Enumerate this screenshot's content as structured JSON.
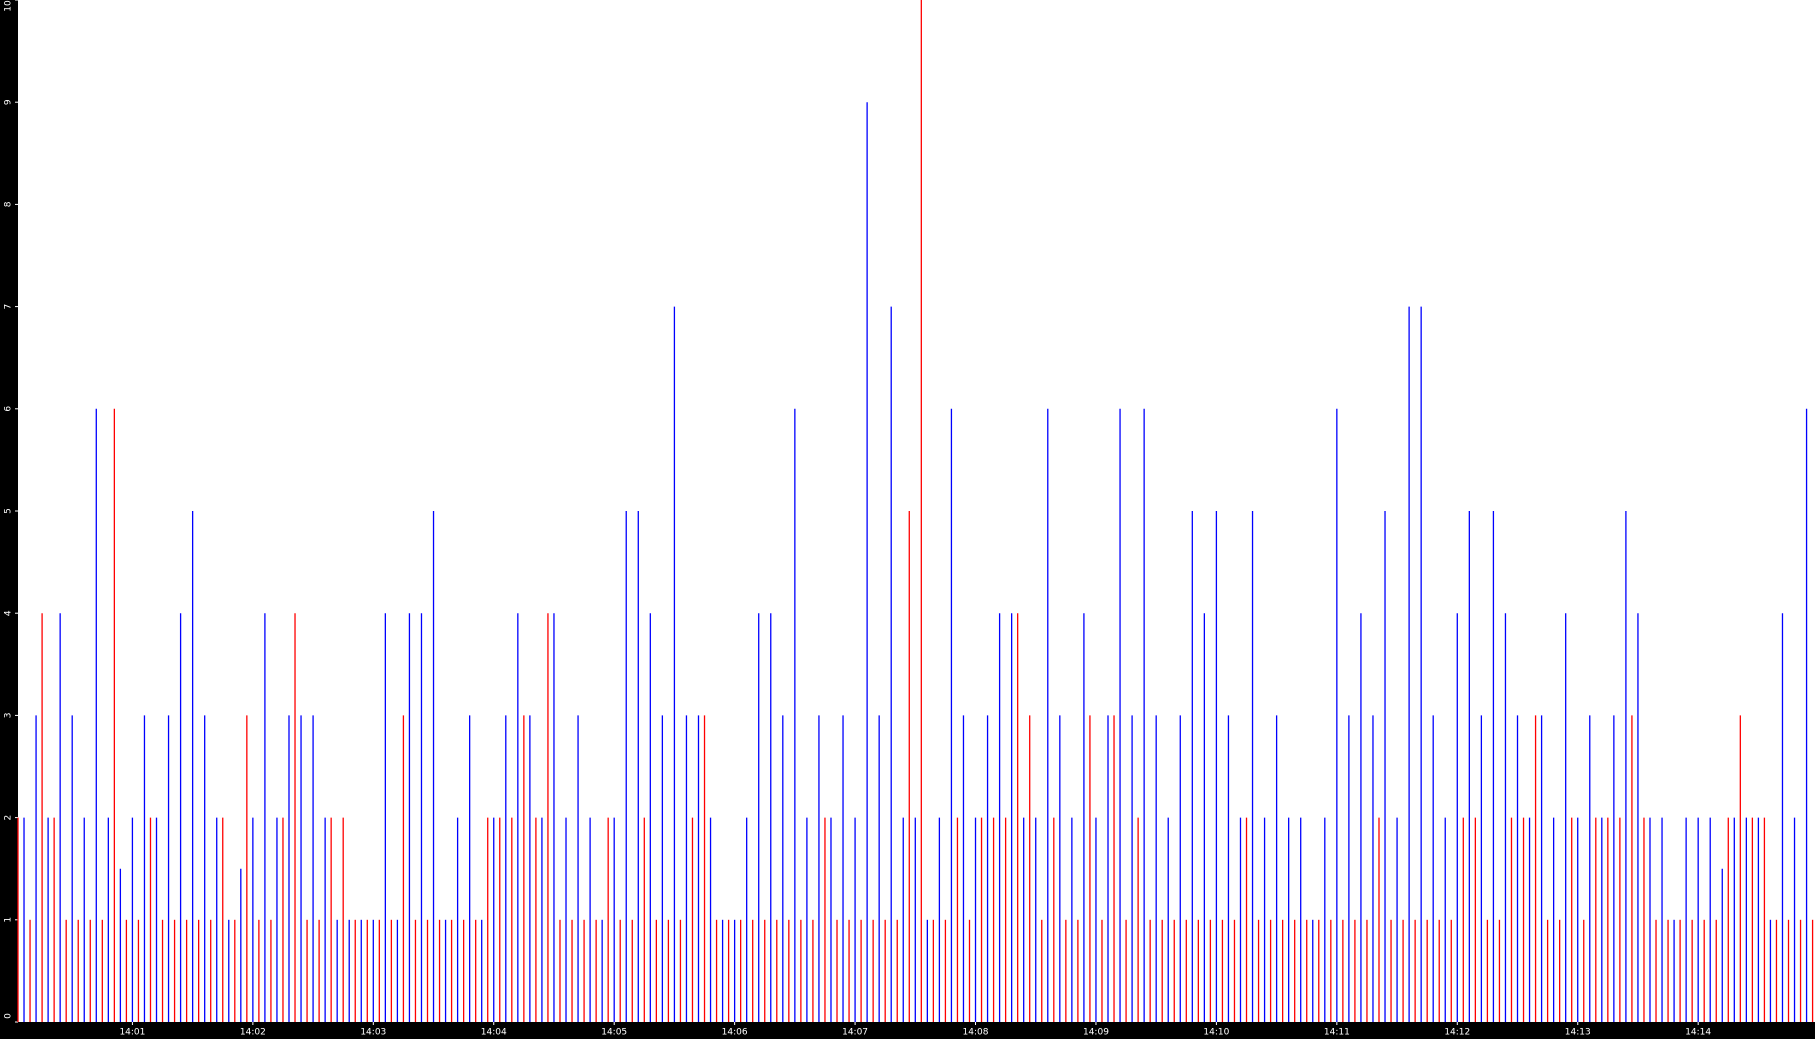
{
  "chart_data": {
    "type": "spike",
    "xlim": [
      0.05,
      14.97
    ],
    "xticks": [
      {
        "value": 1,
        "label": "14:01"
      },
      {
        "value": 2,
        "label": "14:02"
      },
      {
        "value": 3,
        "label": "14:03"
      },
      {
        "value": 4,
        "label": "14:04"
      },
      {
        "value": 5,
        "label": "14:05"
      },
      {
        "value": 6,
        "label": "14:06"
      },
      {
        "value": 7,
        "label": "14:07"
      },
      {
        "value": 8,
        "label": "14:08"
      },
      {
        "value": 9,
        "label": "14:09"
      },
      {
        "value": 10,
        "label": "14:10"
      },
      {
        "value": 11,
        "label": "14:11"
      },
      {
        "value": 12,
        "label": "14:12"
      },
      {
        "value": 13,
        "label": "14:13"
      },
      {
        "value": 14,
        "label": "14:14"
      }
    ],
    "ylim": [
      0,
      10
    ],
    "yticks": [
      0,
      1,
      2,
      3,
      4,
      5,
      6,
      7,
      8,
      9,
      10
    ],
    "series": [
      {
        "color": "#ff0000",
        "x": [
          0.05,
          0.15,
          0.25,
          0.35,
          0.45,
          0.55,
          0.65,
          0.75,
          0.85,
          0.95,
          1.05,
          1.15,
          1.25,
          1.35,
          1.45,
          1.55,
          1.65,
          1.75,
          1.85,
          1.95,
          2.05,
          2.15,
          2.25,
          2.35,
          2.45,
          2.55,
          2.65,
          2.75,
          2.85,
          2.95,
          3.05,
          3.15,
          3.25,
          3.35,
          3.45,
          3.55,
          3.65,
          3.75,
          3.85,
          3.95,
          4.05,
          4.15,
          4.25,
          4.35,
          4.45,
          4.55,
          4.65,
          4.75,
          4.85,
          4.95,
          5.05,
          5.15,
          5.25,
          5.35,
          5.45,
          5.55,
          5.65,
          5.75,
          5.85,
          5.95,
          6.05,
          6.15,
          6.25,
          6.35,
          6.45,
          6.55,
          6.65,
          6.75,
          6.85,
          6.95,
          7.05,
          7.15,
          7.25,
          7.35,
          7.45,
          7.55,
          7.65,
          7.75,
          7.85,
          7.95,
          8.05,
          8.15,
          8.25,
          8.35,
          8.45,
          8.55,
          8.65,
          8.75,
          8.85,
          8.95,
          9.05,
          9.15,
          9.25,
          9.35,
          9.45,
          9.55,
          9.65,
          9.75,
          9.85,
          9.95,
          10.05,
          10.15,
          10.25,
          10.35,
          10.45,
          10.55,
          10.65,
          10.75,
          10.85,
          10.95,
          11.05,
          11.15,
          11.25,
          11.35,
          11.45,
          11.55,
          11.65,
          11.75,
          11.85,
          11.95,
          12.05,
          12.15,
          12.25,
          12.35,
          12.45,
          12.55,
          12.65,
          12.75,
          12.85,
          12.95,
          13.05,
          13.15,
          13.25,
          13.35,
          13.45,
          13.55,
          13.65,
          13.75,
          13.85,
          13.95,
          14.05,
          14.15,
          14.25,
          14.35,
          14.45,
          14.55,
          14.65,
          14.75,
          14.85,
          14.95
        ],
        "values": [
          2,
          1,
          4,
          2,
          1,
          1,
          1,
          1,
          6,
          1,
          1,
          2,
          1,
          1,
          1,
          1,
          1,
          2,
          1,
          3,
          1,
          1,
          2,
          4,
          1,
          1,
          2,
          2,
          1,
          1,
          1,
          1,
          3,
          1,
          1,
          1,
          1,
          1,
          1,
          2,
          2,
          2,
          3,
          2,
          4,
          1,
          1,
          1,
          1,
          2,
          1,
          1,
          2,
          1,
          1,
          1,
          2,
          3,
          1,
          1,
          1,
          1,
          1,
          1,
          1,
          1,
          1,
          2,
          1,
          1,
          1,
          1,
          1,
          1,
          5,
          10,
          1,
          1,
          2,
          1,
          2,
          2,
          2,
          4,
          3,
          1,
          2,
          1,
          1,
          3,
          1,
          3,
          1,
          2,
          1,
          1,
          1,
          1,
          1,
          1,
          1,
          1,
          2,
          1,
          1,
          1,
          1,
          1,
          1,
          1,
          1,
          1,
          1,
          2,
          1,
          1,
          1,
          1,
          1,
          1,
          2,
          2,
          1,
          1,
          2,
          2,
          3,
          1,
          1,
          2,
          1,
          2,
          2,
          2,
          3,
          2,
          1,
          1,
          1,
          1,
          1,
          1,
          2,
          3,
          2,
          2,
          1,
          1,
          1,
          1
        ]
      },
      {
        "color": "#0000ff",
        "x": [
          0.1,
          0.2,
          0.3,
          0.4,
          0.5,
          0.6,
          0.7,
          0.8,
          0.9,
          1.0,
          1.1,
          1.2,
          1.3,
          1.4,
          1.5,
          1.6,
          1.7,
          1.8,
          1.9,
          2.0,
          2.1,
          2.2,
          2.3,
          2.4,
          2.5,
          2.6,
          2.7,
          2.8,
          2.9,
          3.0,
          3.1,
          3.2,
          3.3,
          3.4,
          3.5,
          3.6,
          3.7,
          3.8,
          3.9,
          4.0,
          4.1,
          4.2,
          4.3,
          4.4,
          4.5,
          4.6,
          4.7,
          4.8,
          4.9,
          5.0,
          5.1,
          5.2,
          5.3,
          5.4,
          5.5,
          5.6,
          5.7,
          5.8,
          5.9,
          6.0,
          6.1,
          6.2,
          6.3,
          6.4,
          6.5,
          6.6,
          6.7,
          6.8,
          6.9,
          7.0,
          7.1,
          7.2,
          7.3,
          7.4,
          7.5,
          7.6,
          7.7,
          7.8,
          7.9,
          8.0,
          8.1,
          8.2,
          8.3,
          8.4,
          8.5,
          8.6,
          8.7,
          8.8,
          8.9,
          9.0,
          9.1,
          9.2,
          9.3,
          9.4,
          9.5,
          9.6,
          9.7,
          9.8,
          9.9,
          10.0,
          10.1,
          10.2,
          10.3,
          10.4,
          10.5,
          10.6,
          10.7,
          10.8,
          10.9,
          11.0,
          11.1,
          11.2,
          11.3,
          11.4,
          11.5,
          11.6,
          11.7,
          11.8,
          11.9,
          12.0,
          12.1,
          12.2,
          12.3,
          12.4,
          12.5,
          12.6,
          12.7,
          12.8,
          12.9,
          13.0,
          13.1,
          13.2,
          13.3,
          13.4,
          13.5,
          13.6,
          13.7,
          13.8,
          13.9,
          14.0,
          14.1,
          14.2,
          14.3,
          14.4,
          14.5,
          14.6,
          14.7,
          14.8,
          14.9
        ],
        "values": [
          2,
          3,
          2,
          4,
          3,
          2,
          6,
          2,
          1.5,
          2,
          3,
          2,
          3,
          4,
          5,
          3,
          2,
          1,
          1.5,
          2,
          4,
          2,
          3,
          3,
          3,
          2,
          1,
          1,
          1,
          1,
          4,
          1,
          4,
          4,
          5,
          1,
          2,
          3,
          1,
          2,
          3,
          4,
          3,
          2,
          4,
          2,
          3,
          2,
          1,
          2,
          5,
          5,
          4,
          3,
          7,
          3,
          3,
          2,
          1,
          1,
          2,
          4,
          4,
          3,
          6,
          2,
          3,
          2,
          3,
          2,
          9,
          3,
          7,
          2,
          2,
          1,
          2,
          6,
          3,
          2,
          3,
          4,
          4,
          2,
          2,
          6,
          3,
          2,
          4,
          2,
          3,
          6,
          3,
          6,
          3,
          2,
          3,
          5,
          4,
          5,
          3,
          2,
          5,
          2,
          3,
          2,
          2,
          1,
          2,
          6,
          3,
          4,
          3,
          5,
          2,
          7,
          7,
          3,
          2,
          4,
          5,
          3,
          5,
          4,
          3,
          2,
          3,
          2,
          4,
          2,
          3,
          2,
          3,
          5,
          4,
          2,
          2,
          1,
          2,
          2,
          2,
          1.5,
          2,
          2,
          2,
          1,
          4,
          2,
          6
        ]
      }
    ]
  }
}
